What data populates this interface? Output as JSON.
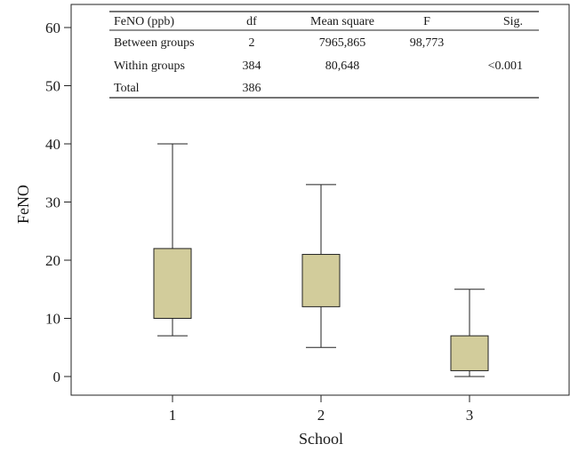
{
  "chart_data": {
    "type": "boxplot",
    "xlabel": "School",
    "ylabel": "FeNO",
    "ylim": [
      0,
      60
    ],
    "yticks": [
      0,
      10,
      20,
      30,
      40,
      50,
      60
    ],
    "categories": [
      "1",
      "2",
      "3"
    ],
    "box_color": "#d2cc9b",
    "boxes": [
      {
        "category": "1",
        "whisker_low": 7,
        "q1": 10,
        "q3": 22,
        "whisker_high": 40
      },
      {
        "category": "2",
        "whisker_low": 5,
        "q1": 12,
        "q3": 21,
        "whisker_high": 33
      },
      {
        "category": "3",
        "whisker_low": 0,
        "q1": 1,
        "q3": 7,
        "whisker_high": 15
      }
    ],
    "table": {
      "headers": [
        "FeNO (ppb)",
        "df",
        "Mean square",
        "F",
        "Sig."
      ],
      "rows": [
        [
          "Between groups",
          "2",
          "7965,865",
          "98,773",
          ""
        ],
        [
          "Within groups",
          "384",
          "80,648",
          "",
          "<0.001"
        ],
        [
          "Total",
          "386",
          "",
          "",
          ""
        ]
      ]
    }
  }
}
